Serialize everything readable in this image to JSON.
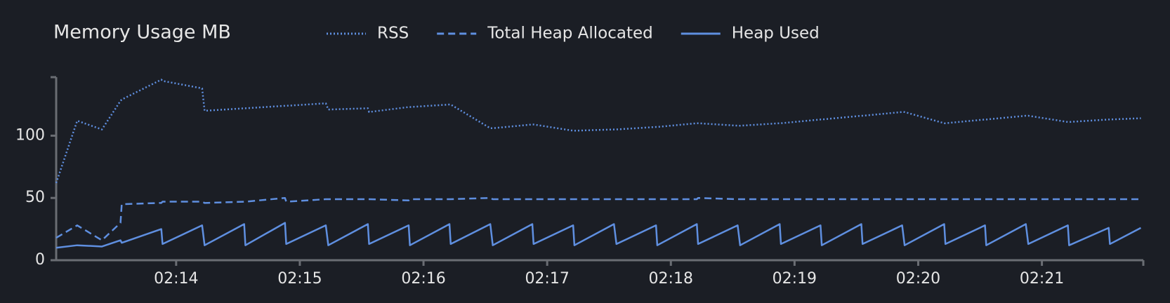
{
  "chart_data": {
    "type": "line",
    "title": "Memory Usage MB",
    "x": [
      133.03,
      133.2,
      133.4,
      133.55,
      133.56,
      133.88,
      133.89,
      134.21,
      134.23,
      134.55,
      134.56,
      134.88,
      134.89,
      135.21,
      135.23,
      135.55,
      135.56,
      135.88,
      135.89,
      136.21,
      136.22,
      136.54,
      136.56,
      136.88,
      136.89,
      137.21,
      137.22,
      137.54,
      137.56,
      137.88,
      137.89,
      138.21,
      138.22,
      138.54,
      138.56,
      138.88,
      138.89,
      139.21,
      139.22,
      139.54,
      139.55,
      139.87,
      139.89,
      140.21,
      140.22,
      140.54,
      140.55,
      140.87,
      140.89,
      141.21,
      141.22,
      141.54,
      141.55,
      141.8
    ],
    "series": [
      {
        "name": "RSS",
        "color": "#5f8fe0",
        "dash": "dotted",
        "values": [
          62,
          112,
          105,
          128,
          129,
          145,
          144,
          138,
          120,
          122,
          122,
          124,
          124,
          126,
          121,
          122,
          119,
          123,
          123,
          125,
          125,
          106,
          106,
          109,
          109,
          104,
          104,
          105,
          105,
          107,
          107,
          110,
          110,
          108,
          108,
          110,
          110,
          113,
          113,
          116,
          116,
          119,
          119,
          110,
          110,
          113,
          113,
          116,
          116,
          111,
          111,
          113,
          113,
          114
        ]
      },
      {
        "name": "Total Heap Allocated",
        "color": "#5f8fe0",
        "dash": "dashed",
        "values": [
          18,
          28,
          16,
          30,
          45,
          46,
          47,
          47,
          46,
          47,
          47,
          50,
          47,
          49,
          49,
          49,
          49,
          48,
          49,
          49,
          49,
          50,
          49,
          49,
          49,
          49,
          49,
          49,
          49,
          49,
          49,
          49,
          50,
          49,
          49,
          49,
          49,
          49,
          49,
          49,
          49,
          49,
          49,
          49,
          49,
          49,
          49,
          49,
          49,
          49,
          49,
          49,
          49,
          49
        ]
      },
      {
        "name": "Heap Used",
        "color": "#5f8fe0",
        "dash": "solid",
        "values": [
          10,
          12,
          11,
          16,
          14,
          25,
          13,
          28,
          12,
          29,
          12,
          30,
          13,
          28,
          12,
          29,
          13,
          28,
          12,
          29,
          13,
          29,
          12,
          29,
          13,
          28,
          12,
          29,
          13,
          28,
          12,
          29,
          13,
          28,
          12,
          29,
          13,
          28,
          12,
          29,
          13,
          28,
          12,
          29,
          13,
          28,
          12,
          29,
          13,
          28,
          12,
          26,
          13,
          26
        ]
      }
    ],
    "xlim": [
      133.03,
      141.82
    ],
    "xticks": [
      {
        "value": 134,
        "label": "02:14"
      },
      {
        "value": 135,
        "label": "02:15"
      },
      {
        "value": 136,
        "label": "02:16"
      },
      {
        "value": 137,
        "label": "02:17"
      },
      {
        "value": 138,
        "label": "02:18"
      },
      {
        "value": 139,
        "label": "02:19"
      },
      {
        "value": 140,
        "label": "02:20"
      },
      {
        "value": 141,
        "label": "02:21"
      }
    ],
    "ylim": [
      0,
      147
    ],
    "yticks": [
      0,
      50,
      100
    ],
    "legend": "top"
  }
}
